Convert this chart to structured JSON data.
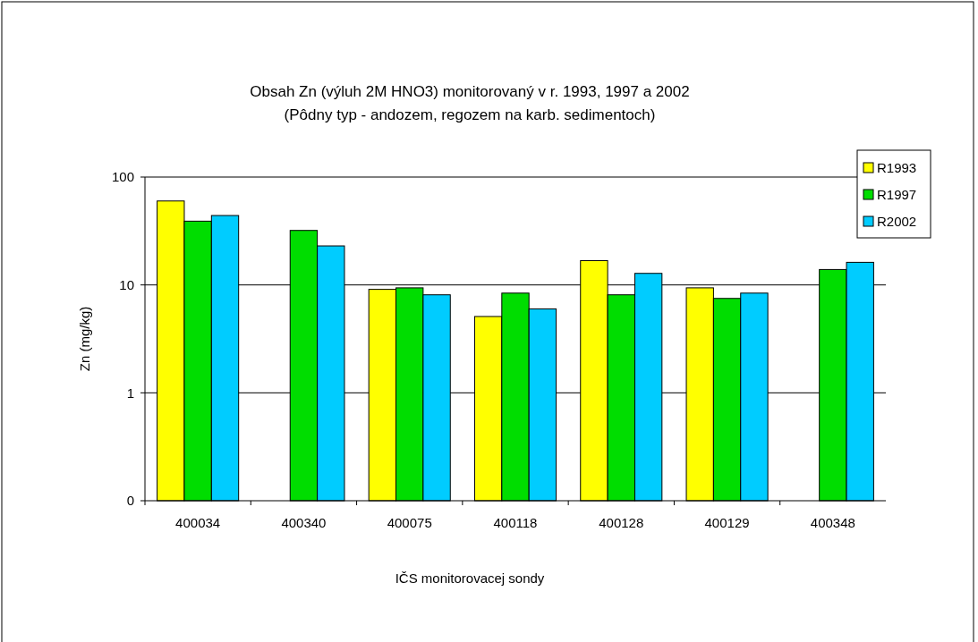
{
  "chart_data": {
    "type": "bar",
    "title": "Obsah Zn (výluh 2M HNO3) monitorovaný v r. 1993, 1997 a 2002",
    "subtitle": "(Pôdny typ - andozem, regozem na karb. sedimentoch)",
    "xlabel": "IČS monitorovacej sondy",
    "ylabel": "Zn (mg/kg)",
    "categories": [
      "400034",
      "400340",
      "400075",
      "400118",
      "400128",
      "400129",
      "400348"
    ],
    "series": [
      {
        "name": "R1993",
        "color": "#ffff00",
        "values": [
          60,
          null,
          9.1,
          5.1,
          16.8,
          9.4,
          null
        ]
      },
      {
        "name": "R1997",
        "color": "#00dd00",
        "values": [
          39,
          32,
          9.4,
          8.4,
          8.1,
          7.5,
          13.9
        ]
      },
      {
        "name": "R2002",
        "color": "#00ccff",
        "values": [
          44,
          23,
          8.1,
          6.0,
          12.8,
          8.4,
          16.2
        ]
      }
    ],
    "log": true,
    "ylim": [
      0.1,
      100
    ],
    "yticks": [
      {
        "value": 0.1,
        "label": "0"
      },
      1,
      10,
      100
    ],
    "grid": "y",
    "legend": "top right"
  }
}
